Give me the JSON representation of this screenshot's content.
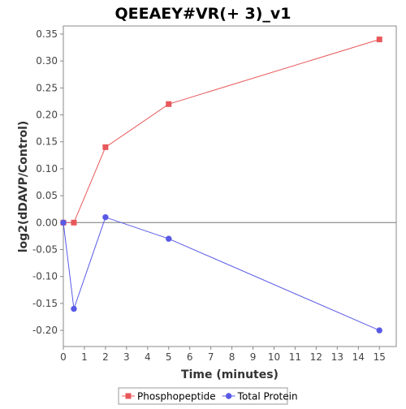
{
  "chart_data": {
    "type": "line",
    "title": "QEEAEY#VR(+ 3)_v1",
    "xlabel": "Time (minutes)",
    "ylabel": "log2(dDAVP/Control)",
    "xlim": [
      0,
      15.8
    ],
    "ylim": [
      -0.23,
      0.365
    ],
    "xticks": [
      0,
      1,
      2,
      3,
      4,
      5,
      6,
      7,
      8,
      9,
      10,
      11,
      12,
      13,
      14,
      15
    ],
    "yticks": [
      -0.2,
      -0.15,
      -0.1,
      -0.05,
      0.0,
      0.05,
      0.1,
      0.15,
      0.2,
      0.25,
      0.3,
      0.35
    ],
    "ytick_labels": [
      "-0.20",
      "-0.15",
      "-0.10",
      "-0.05",
      "0.00",
      "0.05",
      "0.10",
      "0.15",
      "0.20",
      "0.25",
      "0.30",
      "0.35"
    ],
    "zero_line": true,
    "grid": false,
    "legend_position": "bottom",
    "series": [
      {
        "name": "Phosphopeptide",
        "color": "#e8585a",
        "marker": "square",
        "x": [
          0,
          0.5,
          2,
          5,
          15
        ],
        "y": [
          0.0,
          0.0,
          0.14,
          0.22,
          0.34
        ]
      },
      {
        "name": "Total Protein",
        "color": "#5959e6",
        "marker": "circle",
        "x": [
          0,
          0.5,
          2,
          5,
          15
        ],
        "y": [
          0.0,
          -0.16,
          0.01,
          -0.03,
          -0.2
        ]
      }
    ]
  }
}
